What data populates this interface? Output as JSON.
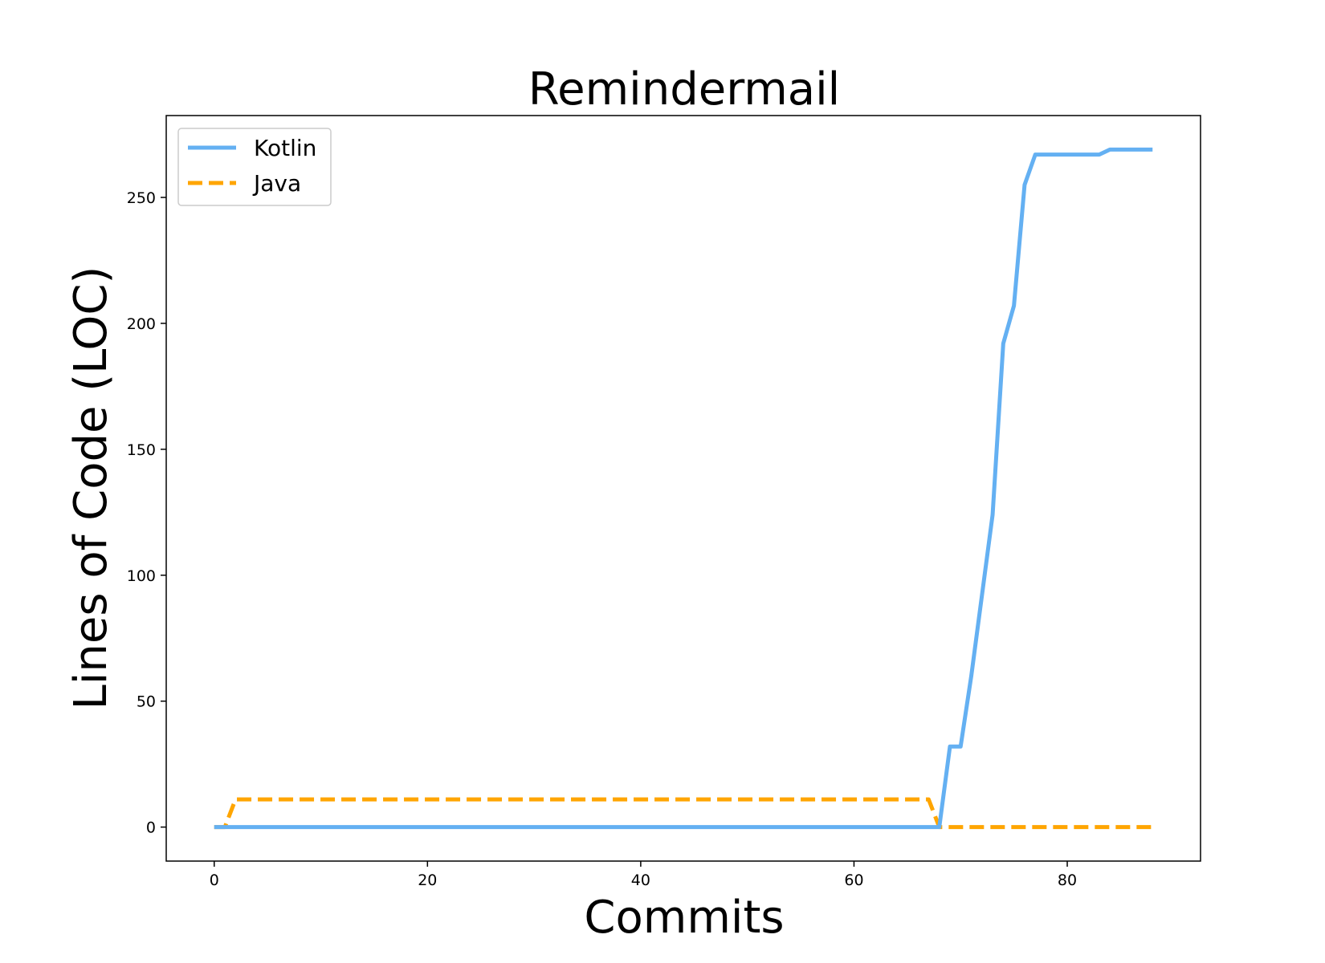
{
  "chart_data": {
    "type": "line",
    "title": "Remindermail",
    "xlabel": "Commits",
    "ylabel": "Lines of Code (LOC)",
    "xlim": [
      -4.5,
      92.5
    ],
    "ylim": [
      -13.5,
      282.5
    ],
    "xticks": [
      0,
      20,
      40,
      60,
      80
    ],
    "yticks": [
      0,
      50,
      100,
      150,
      200,
      250
    ],
    "grid": false,
    "legend_position": "top-left",
    "series": [
      {
        "name": "Kotlin",
        "color": "#64b0f2",
        "style": "solid",
        "points": [
          [
            0,
            0
          ],
          [
            68,
            0
          ],
          [
            69,
            32
          ],
          [
            70,
            32
          ],
          [
            71,
            60
          ],
          [
            72,
            92
          ],
          [
            73,
            124
          ],
          [
            74,
            192
          ],
          [
            75,
            207
          ],
          [
            76,
            255
          ],
          [
            77,
            267
          ],
          [
            78,
            267
          ],
          [
            83,
            267
          ],
          [
            84,
            269
          ],
          [
            88,
            269
          ]
        ]
      },
      {
        "name": "Java",
        "color": "#ffa500",
        "style": "dashed",
        "points": [
          [
            0,
            0
          ],
          [
            1,
            0
          ],
          [
            2,
            11
          ],
          [
            67,
            11
          ],
          [
            68,
            0
          ],
          [
            88,
            0
          ]
        ]
      }
    ]
  }
}
